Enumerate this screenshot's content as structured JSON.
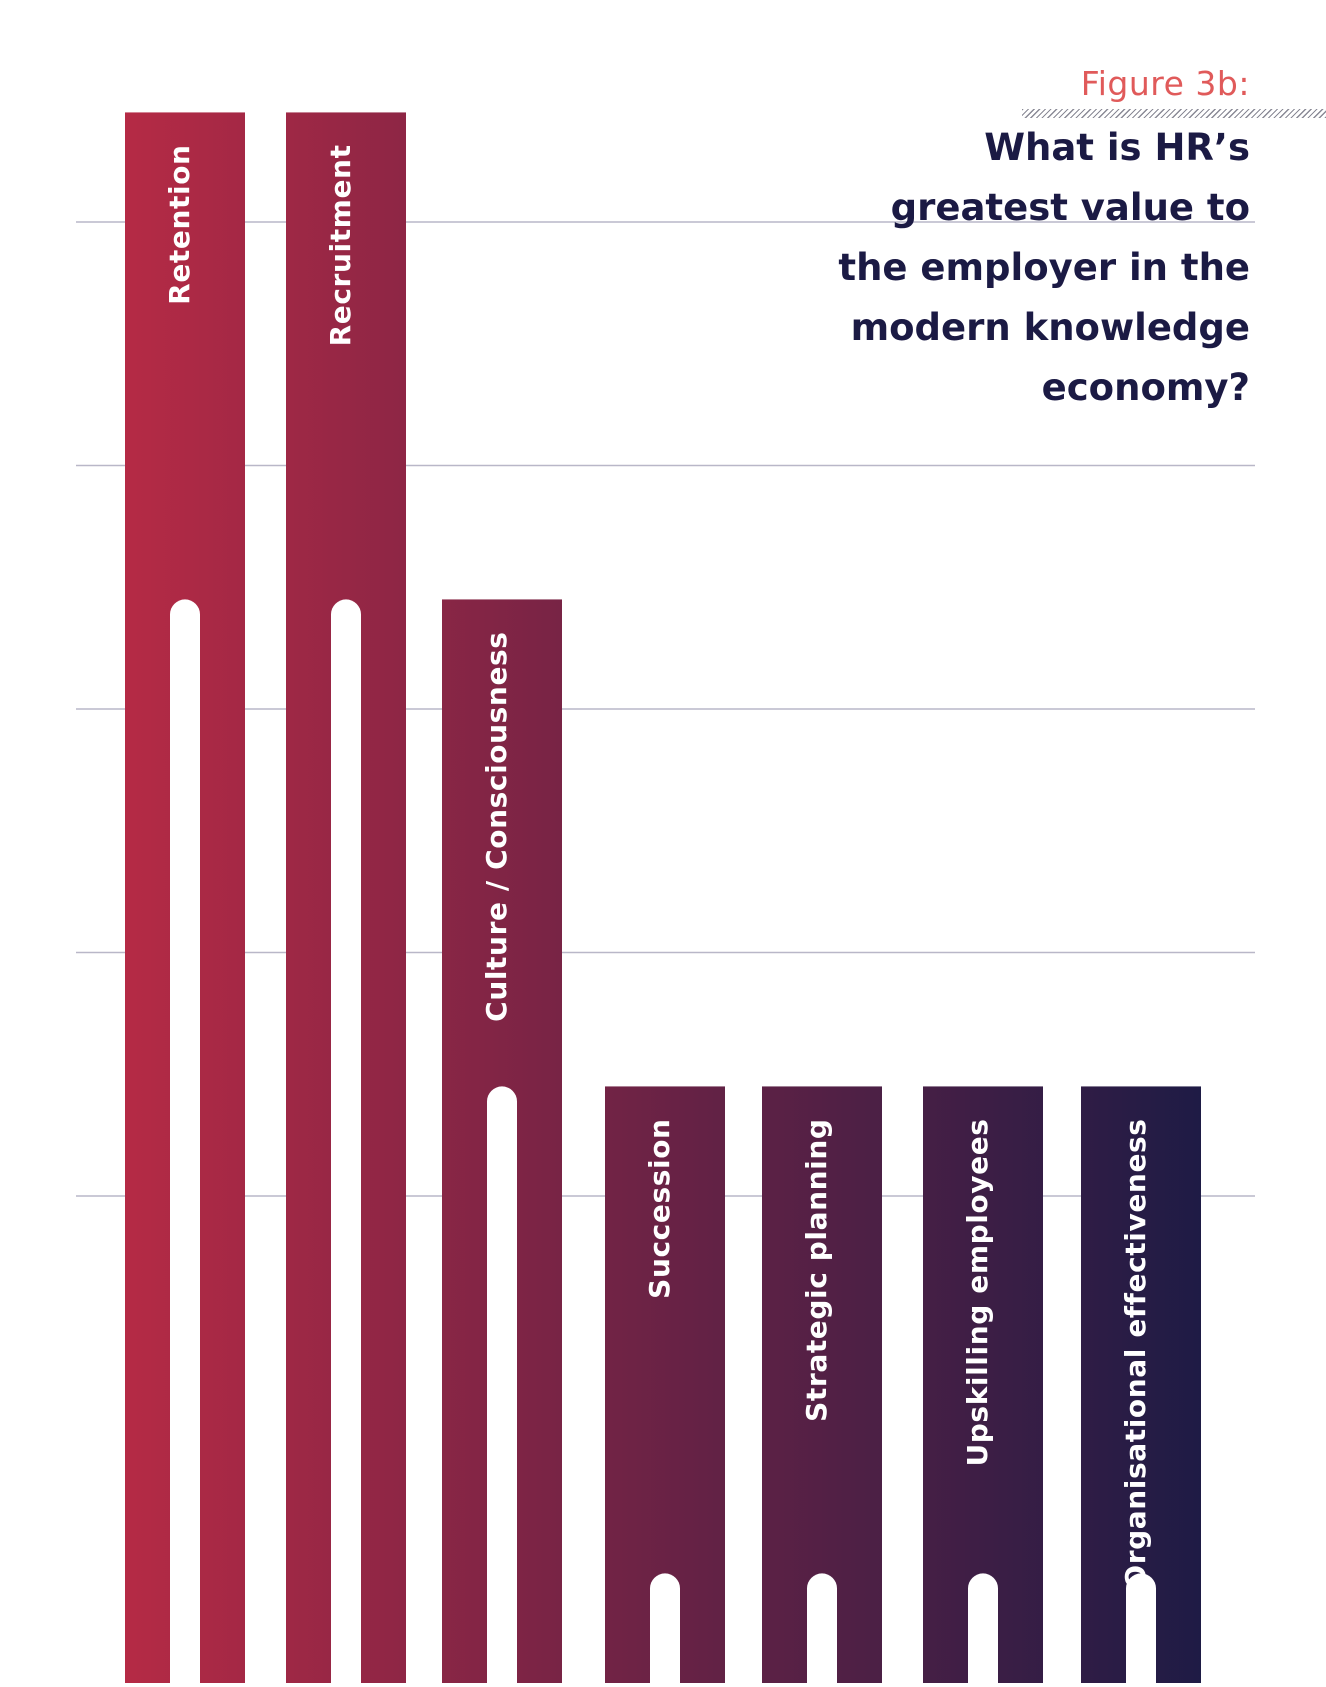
{
  "figure": {
    "label": "Figure 3b:",
    "title_lines": [
      "What is HR’s",
      "greatest value to",
      "the employer in the",
      "modern knowledge",
      "economy?"
    ]
  },
  "chart_data": {
    "type": "bar",
    "title": "What is HR’s greatest value to the employer in the modern knowledge economy?",
    "xlabel": "",
    "ylabel": "",
    "categories": [
      "Retention",
      "Recruitment",
      "Culture / Consciousness",
      "Succession",
      "Strategic planning",
      "Upskilling employees",
      "Organisational effectiveness"
    ],
    "values": [
      6.45,
      6.45,
      4.45,
      2.45,
      2.45,
      2.45,
      2.45
    ],
    "ylim": [
      0,
      6.45
    ],
    "gridlines": [
      2,
      3,
      4,
      5,
      6
    ],
    "grid": true,
    "legend": "none",
    "color_start": "#b52a45",
    "color_end": "#1e1b45",
    "gridline_color": "#b9b7c8",
    "label_color": "#ffffff"
  }
}
